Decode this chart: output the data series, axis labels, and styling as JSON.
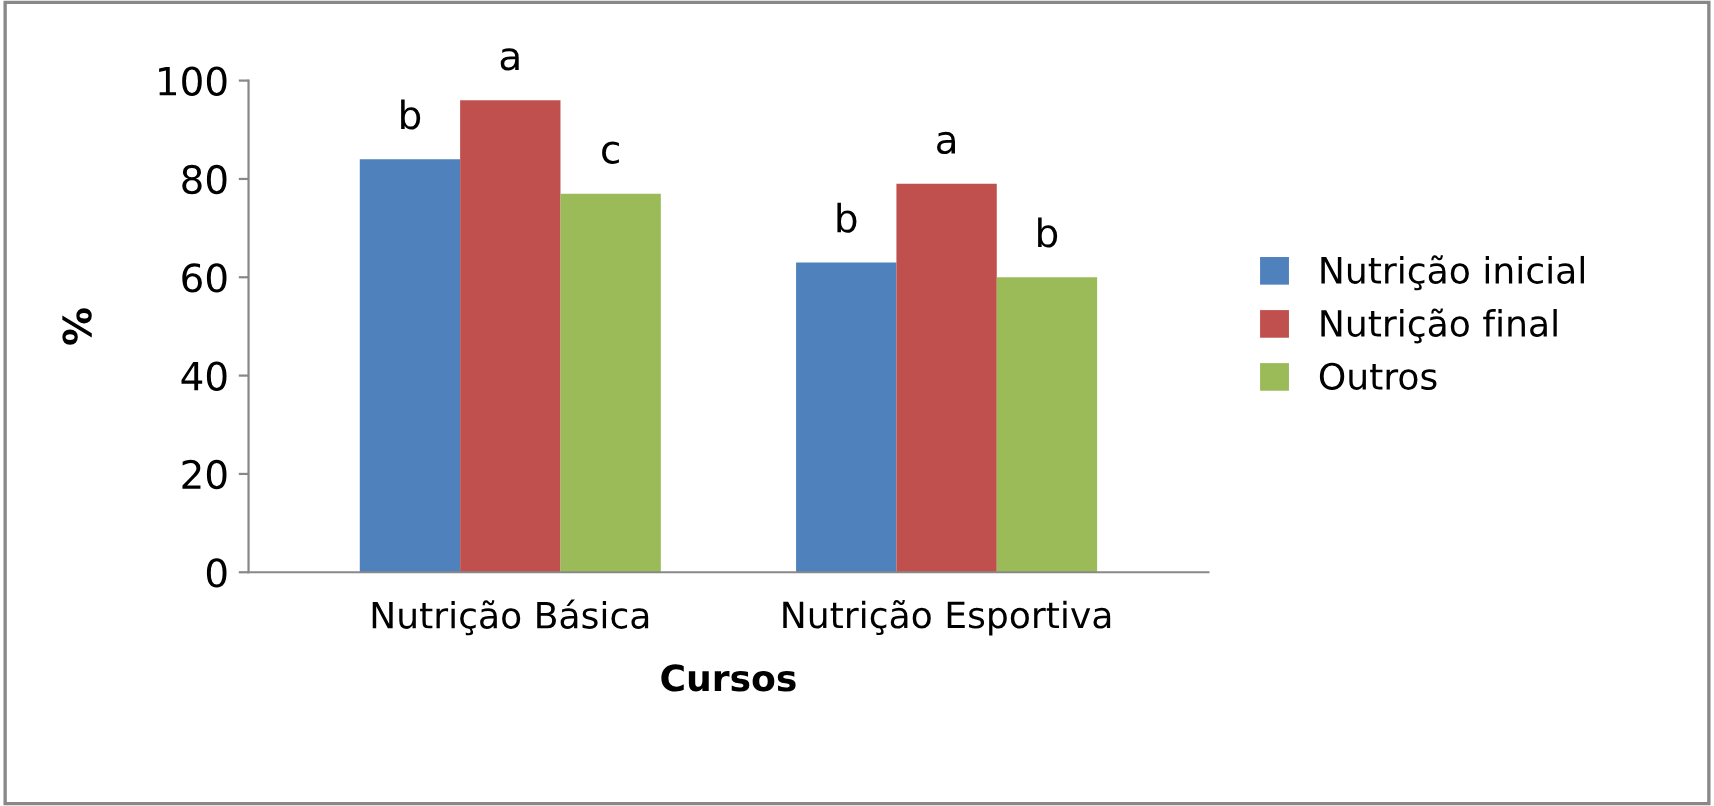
{
  "chart_data": {
    "type": "bar",
    "xlabel": "Cursos",
    "ylabel": "%",
    "categories": [
      "Nutrição Básica",
      "Nutrição Esportiva"
    ],
    "series": [
      {
        "name": "Nutrição inicial",
        "color": "#4f81bd",
        "values": [
          84,
          63
        ],
        "value_labels": [
          "b",
          "b"
        ]
      },
      {
        "name": "Nutrição final",
        "color": "#c0504d",
        "values": [
          96,
          79
        ],
        "value_labels": [
          "a",
          "a"
        ]
      },
      {
        "name": "Outros",
        "color": "#9bbb59",
        "values": [
          77,
          60
        ],
        "value_labels": [
          "c",
          "b"
        ]
      }
    ],
    "ylim": [
      0,
      100
    ],
    "yticks": [
      0,
      20,
      40,
      60,
      80,
      100
    ],
    "grid": false,
    "legend": "right"
  }
}
